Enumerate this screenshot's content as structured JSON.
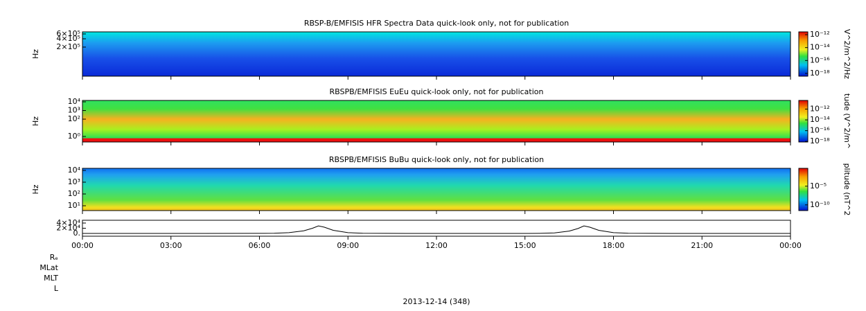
{
  "chart_data": [
    {
      "type": "spectrogram",
      "title": "RBSP-B/EMFISIS  HFR Spectra Data quick-look only, not for publication",
      "ylabel": "Hz",
      "log": true,
      "ylim": [
        17600,
        713000
      ],
      "yticks": [
        {
          "value": 600000,
          "label": "6×10⁵"
        },
        {
          "value": 400000,
          "label": "4×10⁵"
        },
        {
          "value": 200000,
          "label": "2×10⁵"
        }
      ],
      "colorbar": {
        "label": "V^2/m^2/Hz",
        "zlim": [
          3.7e-19,
          2.7e-12
        ],
        "zticks": [
          {
            "value": 1e-12,
            "label": "10⁻¹²"
          },
          {
            "value": 1e-14,
            "label": "10⁻¹⁴"
          },
          {
            "value": 1e-16,
            "label": "10⁻¹⁶"
          },
          {
            "value": 1e-18,
            "label": "10⁻¹⁸"
          }
        ]
      }
    },
    {
      "type": "spectrogram",
      "title": "RBSPB/EMFISIS  EuEu quick-look only, not for publication",
      "ylabel": "Hz",
      "log": true,
      "ylim": [
        0.23,
        14500
      ],
      "yticks": [
        {
          "value": 10000,
          "label": "10⁴"
        },
        {
          "value": 1000,
          "label": "10³"
        },
        {
          "value": 100,
          "label": "10²"
        },
        {
          "value": 1,
          "label": "10⁰"
        }
      ],
      "colorbar": {
        "label": "tude (V^2/m^",
        "zlim": [
          8e-19,
          4e-11
        ],
        "zticks": [
          {
            "value": 1e-12,
            "label": "10⁻¹²"
          },
          {
            "value": 1e-14,
            "label": "10⁻¹⁴"
          },
          {
            "value": 1e-16,
            "label": "10⁻¹⁶"
          },
          {
            "value": 1e-18,
            "label": "10⁻¹⁸"
          }
        ]
      }
    },
    {
      "type": "spectrogram",
      "title": "RBSPB/EMFISIS  BuBu quick-look only, not for publication",
      "ylabel": "Hz",
      "log": true,
      "ylim": [
        3.9,
        15000
      ],
      "yticks": [
        {
          "value": 10000,
          "label": "10⁴"
        },
        {
          "value": 1000,
          "label": "10³"
        },
        {
          "value": 100,
          "label": "10²"
        },
        {
          "value": 10,
          "label": "10¹"
        }
      ],
      "colorbar": {
        "label": "plitude (nT^2",
        "zlim": [
          3e-12,
          0.6
        ],
        "zticks": [
          {
            "value": 1e-05,
            "label": "10⁻⁵"
          },
          {
            "value": 1e-10,
            "label": "10⁻¹⁰"
          }
        ]
      }
    },
    {
      "type": "line",
      "ylim": [
        -10700,
        50700
      ],
      "yticks": [
        {
          "value": 40000,
          "label": "4×10⁴"
        },
        {
          "value": 20000,
          "label": "2×10⁴"
        },
        {
          "value": 0,
          "label": "0."
        }
      ],
      "x": [
        0,
        2,
        4,
        6,
        6.5,
        7,
        7.5,
        7.8,
        8,
        8.2,
        8.5,
        9,
        9.5,
        11,
        13,
        15,
        15.5,
        16,
        16.5,
        16.8,
        17,
        17.2,
        17.5,
        18,
        18.5,
        20,
        22,
        24
      ],
      "series": [
        {
          "color": "#000000",
          "values": [
            0,
            0,
            0,
            300,
            800,
            3000,
            10000,
            20000,
            29000,
            24000,
            12000,
            3000,
            600,
            0,
            0,
            0,
            400,
            2000,
            9000,
            19000,
            29000,
            24000,
            12000,
            3000,
            600,
            0,
            0,
            0
          ]
        }
      ],
      "xlim": [
        0,
        24
      ],
      "xticks": [
        {
          "value": 0,
          "label": "00:00"
        },
        {
          "value": 3,
          "label": "03:00"
        },
        {
          "value": 6,
          "label": "06:00"
        },
        {
          "value": 9,
          "label": "09:00"
        },
        {
          "value": 12,
          "label": "12:00"
        },
        {
          "value": 15,
          "label": "15:00"
        },
        {
          "value": 18,
          "label": "18:00"
        },
        {
          "value": 21,
          "label": "21:00"
        },
        {
          "value": 24,
          "label": "00:00"
        }
      ]
    }
  ],
  "ephemeris_labels": [
    "Rₑ",
    "MLat",
    "MLT",
    "L"
  ],
  "date": "2013-12-14 (348)"
}
